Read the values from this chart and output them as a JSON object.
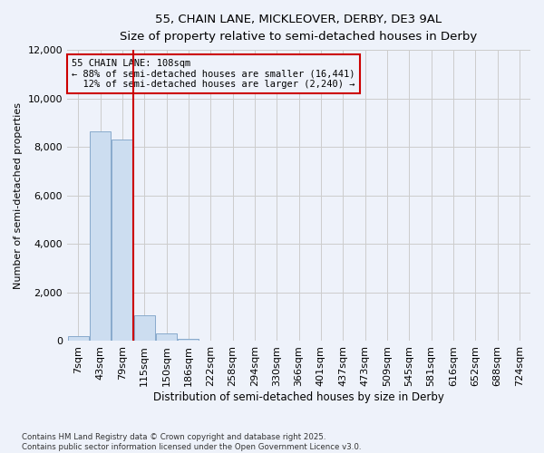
{
  "title_line1": "55, CHAIN LANE, MICKLEOVER, DERBY, DE3 9AL",
  "title_line2": "Size of property relative to semi-detached houses in Derby",
  "xlabel": "Distribution of semi-detached houses by size in Derby",
  "ylabel": "Number of semi-detached properties",
  "property_label": "55 CHAIN LANE: 108sqm",
  "pct_smaller": 88,
  "pct_larger": 12,
  "count_smaller": 16441,
  "count_larger": 2240,
  "categories": [
    "7sqm",
    "43sqm",
    "79sqm",
    "115sqm",
    "150sqm",
    "186sqm",
    "222sqm",
    "258sqm",
    "294sqm",
    "330sqm",
    "366sqm",
    "401sqm",
    "437sqm",
    "473sqm",
    "509sqm",
    "545sqm",
    "581sqm",
    "616sqm",
    "652sqm",
    "688sqm",
    "724sqm"
  ],
  "values": [
    200,
    8650,
    8300,
    1050,
    300,
    80,
    20,
    0,
    0,
    0,
    0,
    0,
    0,
    0,
    0,
    0,
    0,
    0,
    0,
    0,
    0
  ],
  "bar_color": "#ccddf0",
  "bar_edge_color": "#88aacc",
  "vline_color": "#cc0000",
  "vline_x": 2.5,
  "annotation_box_color": "#cc0000",
  "ylim": [
    0,
    12000
  ],
  "yticks": [
    0,
    2000,
    4000,
    6000,
    8000,
    10000,
    12000
  ],
  "grid_color": "#cccccc",
  "bg_color": "#eef2fa",
  "footer_line1": "Contains HM Land Registry data © Crown copyright and database right 2025.",
  "footer_line2": "Contains public sector information licensed under the Open Government Licence v3.0."
}
